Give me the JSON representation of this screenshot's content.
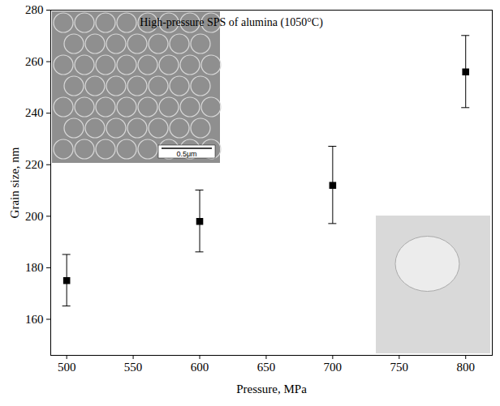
{
  "chart_data": {
    "type": "scatter",
    "annotations": [
      "High-pressure SPS of alumina (1050°C)",
      "0.5μm"
    ],
    "x_label": "Pressure, MPa",
    "y_label": "Grain size, nm",
    "x": [
      500,
      600,
      700,
      800
    ],
    "values": [
      175,
      198,
      212,
      256
    ],
    "error": [
      10,
      12,
      15,
      14
    ],
    "color": "#000000",
    "marker": "square",
    "xlim": [
      488,
      820
    ],
    "xticks": [
      500,
      550,
      600,
      650,
      700,
      750,
      800
    ],
    "ylim": [
      146,
      280
    ],
    "yticks": [
      160,
      180,
      200,
      220,
      240,
      260,
      280
    ],
    "grid": false
  }
}
